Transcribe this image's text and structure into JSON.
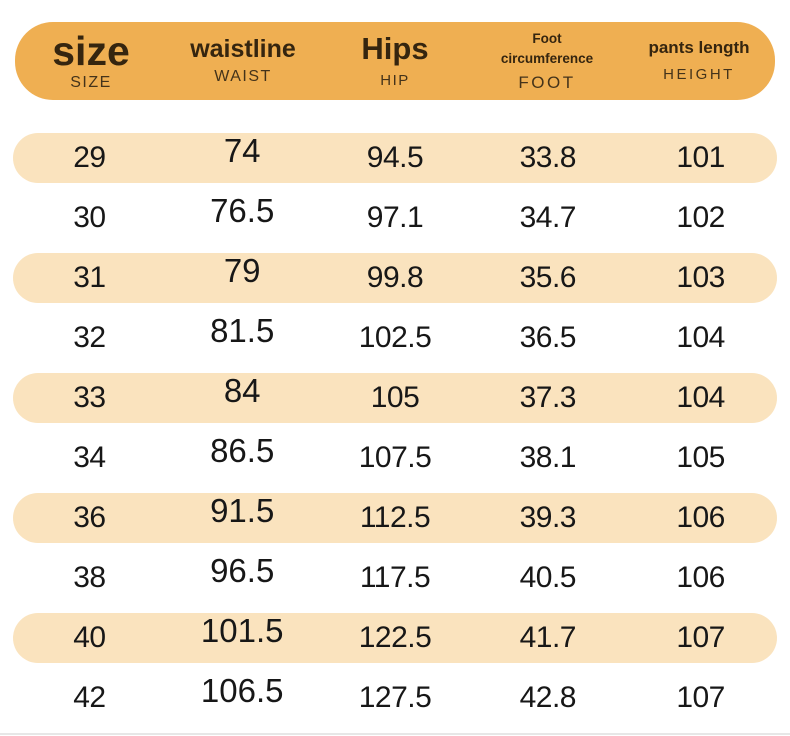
{
  "colors": {
    "header_bg": "#EFAF52",
    "row_alt_bg": "#FAE3BE",
    "header_text": "#35250F",
    "header_subtext": "#44331A",
    "cell_text": "#171717"
  },
  "chart_data": {
    "type": "table",
    "description": "Pants size chart with measurements in cm",
    "columns": [
      {
        "id": "size",
        "label": "size",
        "sublabel": "SIZE"
      },
      {
        "id": "waist",
        "label": "waistline",
        "sublabel": "WAIST"
      },
      {
        "id": "hip",
        "label": "Hips",
        "sublabel": "HIP"
      },
      {
        "id": "foot",
        "label": "Foot circumference",
        "sublabel": "FOOT"
      },
      {
        "id": "height",
        "label": "pants length",
        "sublabel": "HEIGHT"
      }
    ],
    "rows": [
      [
        29,
        74,
        94.5,
        33.8,
        101
      ],
      [
        30,
        76.5,
        97.1,
        34.7,
        102
      ],
      [
        31,
        79,
        99.8,
        35.6,
        103
      ],
      [
        32,
        81.5,
        102.5,
        36.5,
        104
      ],
      [
        33,
        84,
        105,
        37.3,
        104
      ],
      [
        34,
        86.5,
        107.5,
        38.1,
        105
      ],
      [
        36,
        91.5,
        112.5,
        39.3,
        106
      ],
      [
        38,
        96.5,
        117.5,
        40.5,
        106
      ],
      [
        40,
        101.5,
        122.5,
        41.7,
        107
      ],
      [
        42,
        106.5,
        127.5,
        42.8,
        107
      ]
    ],
    "row_highlight_pattern": "odd rows (1st, 3rd, 5th, 7th, 9th) have peach pill background"
  }
}
